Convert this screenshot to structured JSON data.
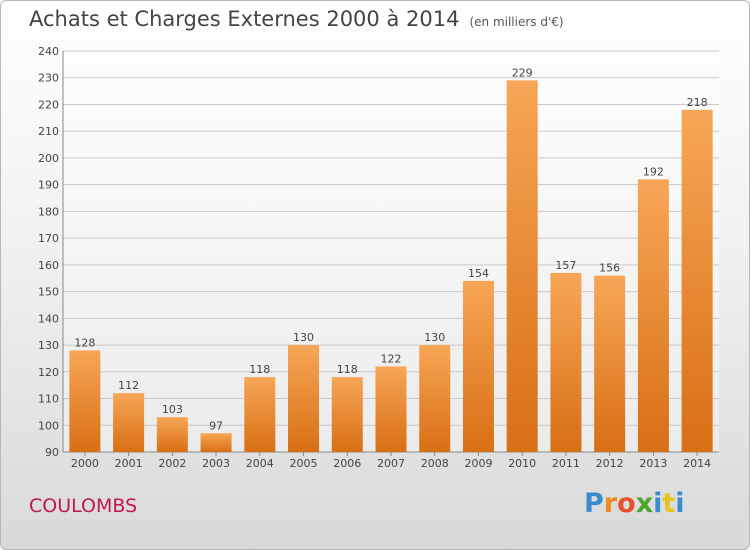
{
  "header": {
    "title": "Achats et Charges Externes 2000 à 2014",
    "subtitle": "(en milliers d'€)"
  },
  "footer": {
    "city": "COULOMBS",
    "brand": "Proxiti"
  },
  "colors": {
    "bar_top": "#f7a657",
    "bar_bottom": "#d86f14",
    "city": "#c2184d",
    "brand_letters": [
      "#3a8bd0",
      "#f08a1d",
      "#e8522a",
      "#4aa52e",
      "#3a8bd0",
      "#e8c31d",
      "#3a8bd0"
    ]
  },
  "chart_data": {
    "type": "bar",
    "title": "Achats et Charges Externes 2000 à 2014",
    "subtitle": "(en milliers d'€)",
    "categories": [
      "2000",
      "2001",
      "2002",
      "2003",
      "2004",
      "2005",
      "2006",
      "2007",
      "2008",
      "2009",
      "2010",
      "2011",
      "2012",
      "2013",
      "2014"
    ],
    "values": [
      128,
      112,
      103,
      97,
      118,
      130,
      118,
      122,
      130,
      154,
      229,
      157,
      156,
      192,
      218
    ],
    "ylim": [
      90,
      240
    ],
    "yticks": [
      90,
      100,
      110,
      120,
      130,
      140,
      150,
      160,
      170,
      180,
      190,
      200,
      210,
      220,
      230,
      240
    ],
    "grid": true,
    "legend": "none"
  }
}
